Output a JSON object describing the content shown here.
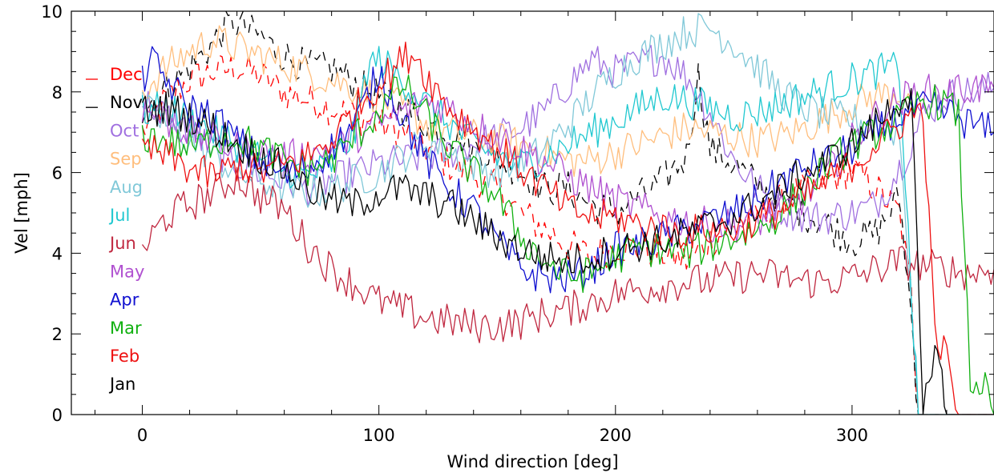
{
  "chart_data": {
    "type": "line",
    "xlabel": "Wind direction [deg]",
    "ylabel": "Vel [mph]",
    "xlim": [
      -30,
      360
    ],
    "ylim": [
      0,
      10
    ],
    "xticks": [
      0,
      100,
      200,
      300
    ],
    "yticks": [
      0,
      2,
      4,
      6,
      8,
      10
    ],
    "grid": false,
    "legend_position": "left",
    "series": [
      {
        "name": "Dec",
        "color": "#ff0000",
        "dashed": true,
        "x": [
          0,
          10,
          20,
          30,
          40,
          50,
          60,
          70,
          80,
          90,
          100,
          110,
          120,
          130,
          140,
          150,
          160,
          170,
          180,
          190,
          200,
          210,
          220,
          230,
          240,
          250,
          260,
          270,
          280,
          290,
          300,
          310,
          320,
          325,
          328,
          335,
          360
        ],
        "y": [
          7.0,
          7.8,
          8.3,
          8.5,
          8.6,
          8.4,
          8.0,
          7.8,
          7.6,
          7.4,
          7.2,
          7.0,
          6.6,
          6.2,
          5.9,
          5.6,
          5.0,
          4.6,
          4.2,
          3.9,
          4.2,
          4.1,
          4.0,
          3.8,
          4.3,
          4.6,
          4.9,
          5.3,
          5.6,
          5.8,
          6.1,
          5.6,
          5.0,
          3.0,
          0.0,
          0.0,
          0.0
        ]
      },
      {
        "name": "Nov",
        "color": "#000000",
        "dashed": true,
        "x": [
          0,
          10,
          20,
          30,
          35,
          40,
          45,
          50,
          55,
          60,
          70,
          80,
          90,
          100,
          110,
          120,
          130,
          140,
          150,
          160,
          170,
          180,
          190,
          200,
          210,
          220,
          230,
          235,
          240,
          250,
          260,
          270,
          280,
          290,
          300,
          310,
          320,
          325,
          328,
          360
        ],
        "y": [
          7.6,
          8.1,
          8.6,
          9.2,
          9.6,
          9.7,
          9.5,
          9.4,
          9.1,
          8.9,
          8.6,
          8.6,
          8.2,
          7.9,
          7.6,
          7.2,
          7.0,
          6.6,
          6.4,
          6.0,
          5.6,
          5.6,
          5.2,
          5.0,
          5.4,
          5.8,
          6.4,
          8.4,
          6.6,
          6.2,
          5.7,
          5.3,
          5.0,
          4.7,
          4.3,
          4.5,
          5.4,
          2.5,
          0.0,
          0.0
        ]
      },
      {
        "name": "Oct",
        "color": "#a070e0",
        "dashed": false,
        "x": [
          0,
          10,
          20,
          30,
          40,
          50,
          60,
          70,
          80,
          90,
          100,
          110,
          120,
          130,
          140,
          150,
          160,
          170,
          180,
          190,
          200,
          210,
          220,
          230,
          240,
          250,
          260,
          270,
          280,
          290,
          300,
          310,
          320,
          330,
          340,
          350,
          360
        ],
        "y": [
          7.8,
          7.4,
          7.0,
          6.6,
          6.2,
          6.0,
          5.8,
          5.6,
          5.8,
          6.0,
          6.2,
          6.3,
          6.4,
          6.5,
          6.7,
          6.9,
          7.1,
          7.5,
          8.2,
          8.8,
          8.5,
          8.7,
          8.9,
          8.4,
          7.5,
          6.3,
          5.6,
          5.1,
          4.9,
          4.9,
          5.0,
          5.2,
          6.1,
          7.4,
          7.9,
          8.0,
          8.1
        ]
      },
      {
        "name": "Sep",
        "color": "#ffbe7d",
        "dashed": false,
        "x": [
          0,
          10,
          20,
          30,
          40,
          50,
          60,
          70,
          80,
          90,
          100,
          110,
          120,
          130,
          140,
          150,
          160,
          170,
          180,
          190,
          200,
          210,
          220,
          230,
          240,
          250,
          260,
          270,
          280,
          290,
          300,
          310,
          320,
          325
        ],
        "y": [
          8.0,
          8.6,
          9.0,
          9.3,
          9.1,
          8.9,
          8.7,
          8.5,
          8.3,
          8.1,
          7.9,
          7.6,
          7.2,
          7.0,
          6.9,
          6.8,
          6.7,
          6.5,
          6.3,
          6.3,
          6.5,
          6.7,
          6.9,
          7.1,
          7.0,
          6.9,
          6.8,
          6.9,
          7.1,
          7.4,
          7.7,
          7.9,
          8.0,
          7.8
        ]
      },
      {
        "name": "Aug",
        "color": "#80c8d8",
        "dashed": false,
        "x": [
          0,
          10,
          20,
          30,
          40,
          50,
          60,
          70,
          80,
          90,
          100,
          110,
          120,
          130,
          140,
          150,
          160,
          170,
          180,
          190,
          200,
          210,
          220,
          230,
          240,
          250,
          260,
          270,
          280,
          290,
          300,
          310,
          320,
          325,
          328,
          360
        ],
        "y": [
          7.6,
          7.2,
          6.8,
          6.4,
          6.0,
          5.8,
          5.6,
          5.5,
          5.6,
          5.8,
          6.0,
          6.4,
          6.8,
          6.5,
          6.2,
          6.0,
          6.2,
          6.6,
          7.2,
          7.9,
          8.5,
          8.9,
          9.2,
          9.5,
          9.6,
          9.2,
          8.6,
          8.0,
          7.6,
          7.4,
          7.3,
          7.2,
          7.0,
          3.0,
          0.0,
          0.0
        ]
      },
      {
        "name": "Jul",
        "color": "#20c8d0",
        "dashed": false,
        "x": [
          0,
          10,
          20,
          30,
          40,
          50,
          60,
          70,
          80,
          90,
          95,
          100,
          110,
          120,
          130,
          140,
          150,
          160,
          170,
          180,
          190,
          200,
          210,
          220,
          230,
          240,
          250,
          260,
          270,
          280,
          290,
          300,
          310,
          320,
          325,
          328,
          360
        ],
        "y": [
          7.5,
          7.6,
          7.3,
          7.0,
          6.7,
          6.4,
          6.1,
          5.9,
          6.2,
          7.0,
          8.6,
          8.8,
          8.3,
          7.7,
          7.2,
          6.7,
          6.4,
          6.2,
          6.4,
          6.7,
          7.0,
          7.3,
          7.6,
          7.9,
          7.8,
          7.6,
          7.4,
          7.5,
          7.7,
          7.9,
          8.1,
          8.3,
          8.5,
          8.6,
          3.0,
          0.0,
          0.0
        ]
      },
      {
        "name": "Jun",
        "color": "#c02840",
        "dashed": false,
        "x": [
          0,
          3,
          10,
          20,
          30,
          40,
          50,
          60,
          70,
          80,
          90,
          100,
          110,
          120,
          130,
          140,
          150,
          160,
          170,
          180,
          190,
          200,
          210,
          220,
          230,
          240,
          250,
          260,
          270,
          280,
          290,
          300,
          310,
          320,
          330,
          340,
          350,
          360
        ],
        "y": [
          4.1,
          4.3,
          4.9,
          5.2,
          5.5,
          5.9,
          5.4,
          5.1,
          4.2,
          3.6,
          3.2,
          2.8,
          2.6,
          2.4,
          2.3,
          2.2,
          2.2,
          2.3,
          2.5,
          2.6,
          2.8,
          3.0,
          3.1,
          3.2,
          3.3,
          3.3,
          3.4,
          3.5,
          3.4,
          3.3,
          3.3,
          3.4,
          3.6,
          3.8,
          3.7,
          3.6,
          3.5,
          3.6
        ]
      },
      {
        "name": "May",
        "color": "#b050d0",
        "dashed": false,
        "x": [
          0,
          10,
          20,
          30,
          40,
          50,
          60,
          70,
          80,
          90,
          100,
          110,
          120,
          130,
          140,
          150,
          160,
          170,
          180,
          190,
          200,
          210,
          220,
          230,
          240,
          250,
          260,
          270,
          280,
          290,
          300,
          310,
          320,
          330,
          340,
          350,
          360
        ],
        "y": [
          7.6,
          7.3,
          7.0,
          6.8,
          6.6,
          6.5,
          6.4,
          6.4,
          6.6,
          6.9,
          7.2,
          7.5,
          7.8,
          7.6,
          7.2,
          6.9,
          6.6,
          6.3,
          5.9,
          5.6,
          5.3,
          5.1,
          4.9,
          4.8,
          4.7,
          4.7,
          4.8,
          5.0,
          5.4,
          6.0,
          6.8,
          7.4,
          7.8,
          8.0,
          8.0,
          8.1,
          8.1
        ]
      },
      {
        "name": "Apr",
        "color": "#1010d0",
        "dashed": false,
        "x": [
          0,
          3,
          10,
          20,
          30,
          40,
          50,
          60,
          70,
          80,
          90,
          100,
          110,
          120,
          130,
          140,
          150,
          160,
          170,
          180,
          190,
          200,
          210,
          220,
          230,
          240,
          250,
          260,
          270,
          280,
          290,
          300,
          310,
          320,
          330,
          340,
          350,
          360
        ],
        "y": [
          8.2,
          8.8,
          8.3,
          7.6,
          7.4,
          6.8,
          6.3,
          5.9,
          6.1,
          6.6,
          7.2,
          8.5,
          7.4,
          6.3,
          5.6,
          5.1,
          4.3,
          3.6,
          3.4,
          3.4,
          3.6,
          4.1,
          4.2,
          4.4,
          4.6,
          4.8,
          5.0,
          5.3,
          5.8,
          6.1,
          6.3,
          6.6,
          7.0,
          7.4,
          7.6,
          7.5,
          7.2,
          7.0
        ]
      },
      {
        "name": "Mar",
        "color": "#10b010",
        "dashed": false,
        "x": [
          0,
          10,
          20,
          30,
          40,
          50,
          60,
          70,
          80,
          90,
          100,
          110,
          120,
          130,
          140,
          150,
          160,
          170,
          180,
          190,
          200,
          210,
          220,
          230,
          240,
          250,
          260,
          270,
          280,
          290,
          300,
          310,
          320,
          330,
          340,
          345,
          350,
          355,
          360
        ],
        "y": [
          6.9,
          6.8,
          6.6,
          6.8,
          6.9,
          6.6,
          6.3,
          6.1,
          6.3,
          6.9,
          7.5,
          8.2,
          7.4,
          6.6,
          6.0,
          5.4,
          4.4,
          3.8,
          3.4,
          3.5,
          3.9,
          4.1,
          4.1,
          4.0,
          4.2,
          4.4,
          4.6,
          5.0,
          5.6,
          6.2,
          6.7,
          7.0,
          7.3,
          7.8,
          7.7,
          7.4,
          0.8,
          0.8,
          0.0
        ]
      },
      {
        "name": "Feb",
        "color": "#ee1010",
        "dashed": false,
        "x": [
          0,
          10,
          20,
          30,
          40,
          50,
          60,
          70,
          80,
          90,
          100,
          110,
          115,
          120,
          130,
          140,
          150,
          160,
          170,
          180,
          190,
          200,
          210,
          220,
          230,
          240,
          250,
          260,
          270,
          280,
          290,
          300,
          310,
          320,
          330,
          335,
          340,
          345,
          360
        ],
        "y": [
          6.6,
          6.4,
          6.1,
          5.9,
          6.2,
          6.0,
          6.2,
          6.4,
          6.8,
          7.6,
          8.2,
          8.8,
          9.0,
          8.4,
          7.6,
          7.1,
          6.6,
          6.1,
          5.6,
          5.1,
          4.9,
          4.9,
          4.7,
          4.6,
          4.5,
          4.6,
          4.6,
          4.8,
          5.1,
          5.4,
          5.8,
          6.2,
          6.7,
          7.2,
          7.6,
          2.0,
          1.4,
          0.0,
          0.0
        ]
      },
      {
        "name": "Jan",
        "color": "#000000",
        "dashed": false,
        "x": [
          0,
          10,
          20,
          30,
          40,
          50,
          60,
          70,
          80,
          90,
          100,
          110,
          120,
          130,
          140,
          150,
          160,
          170,
          180,
          190,
          200,
          210,
          220,
          230,
          240,
          250,
          260,
          270,
          280,
          290,
          300,
          310,
          320,
          325,
          330,
          335,
          338,
          340,
          345,
          350,
          360
        ],
        "y": [
          7.5,
          7.6,
          7.4,
          7.1,
          6.7,
          6.4,
          6.1,
          5.6,
          5.3,
          5.2,
          5.5,
          5.6,
          5.4,
          5.2,
          4.8,
          4.4,
          4.1,
          3.9,
          3.8,
          3.9,
          4.1,
          4.2,
          4.3,
          4.5,
          4.7,
          4.9,
          5.2,
          5.6,
          6.0,
          6.3,
          6.7,
          7.2,
          7.8,
          8.0,
          0.0,
          1.3,
          1.3,
          0.0,
          0.0,
          0.0,
          0.0
        ]
      }
    ]
  }
}
